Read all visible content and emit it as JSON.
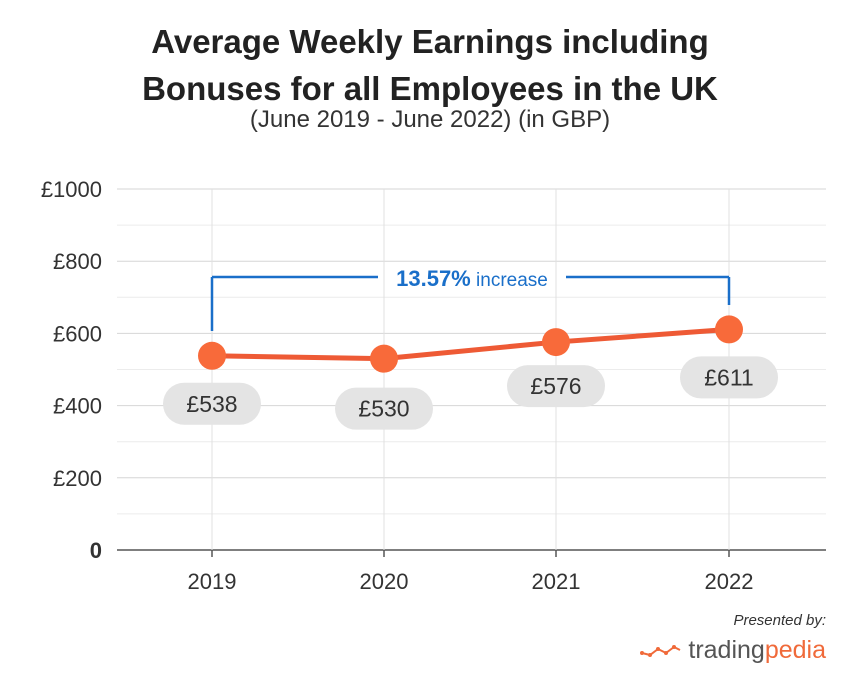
{
  "title_line1": "Average Weekly Earnings including",
  "title_line2": "Bonuses for all Employees in the UK",
  "subtitle": "(June 2019 - June 2022) (in GBP)",
  "chart_data": {
    "type": "line",
    "title": "Average Weekly Earnings including Bonuses for all Employees in the UK",
    "subtitle": "(June 2019 - June 2022) (in GBP)",
    "categories": [
      "2019",
      "2020",
      "2021",
      "2022"
    ],
    "values": [
      538,
      530,
      576,
      611
    ],
    "data_labels": [
      "£538",
      "£530",
      "£576",
      "£611"
    ],
    "y_ticks": [
      0,
      200,
      400,
      600,
      800,
      1000
    ],
    "y_tick_labels": [
      "0",
      "£200",
      "£400",
      "£600",
      "£800",
      "£1000"
    ],
    "ylim": [
      0,
      1000
    ],
    "xlabel": "",
    "ylabel": "",
    "grid": true,
    "annotation": {
      "value": "13.57%",
      "text": "increase",
      "from": "2019",
      "to": "2022"
    },
    "colors": {
      "line": "#ee5a35",
      "marker": "#f86a3a",
      "bracket": "#1a6fc9",
      "label_bg": "#e4e4e4",
      "grid": "#d6d6d6"
    }
  },
  "footer": {
    "presented_by": "Presented by:",
    "brand_part1": "trading",
    "brand_part2": "pedia"
  }
}
